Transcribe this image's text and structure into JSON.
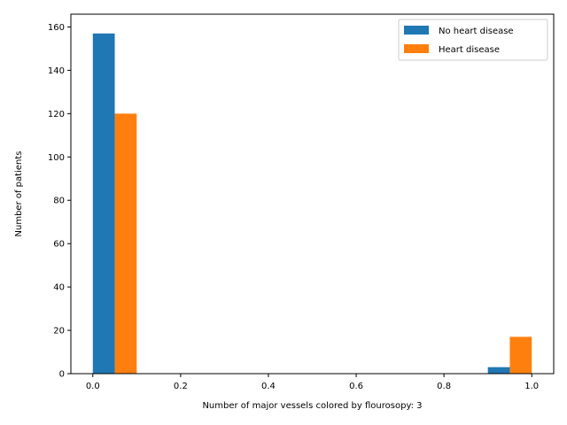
{
  "chart_data": {
    "type": "bar",
    "title": "",
    "xlabel": "Number of major vessels  colored by flourosopy: 3",
    "ylabel": "Number of patients",
    "xlim": [
      -0.05,
      1.05
    ],
    "ylim": [
      0,
      165.9
    ],
    "xticks": [
      0.0,
      0.2,
      0.4,
      0.6,
      0.8,
      1.0
    ],
    "xtick_labels": [
      "0.0",
      "0.2",
      "0.4",
      "0.6",
      "0.8",
      "1.0"
    ],
    "yticks": [
      0,
      20,
      40,
      60,
      80,
      100,
      120,
      140,
      160
    ],
    "ytick_labels": [
      "0",
      "20",
      "40",
      "60",
      "80",
      "100",
      "120",
      "140",
      "160"
    ],
    "bin_edges": [
      0.0,
      0.1,
      0.9,
      1.0
    ],
    "bins": [
      {
        "label": "0",
        "range": [
          0.0,
          0.1
        ]
      },
      {
        "label": "1",
        "range": [
          0.9,
          1.0
        ]
      }
    ],
    "series": [
      {
        "name": "No heart disease",
        "color": "#1f77b4",
        "values": [
          157,
          3
        ]
      },
      {
        "name": "Heart disease",
        "color": "#ff7f0e",
        "values": [
          120,
          17
        ]
      }
    ],
    "grid": false,
    "legend_position": "top-right"
  }
}
